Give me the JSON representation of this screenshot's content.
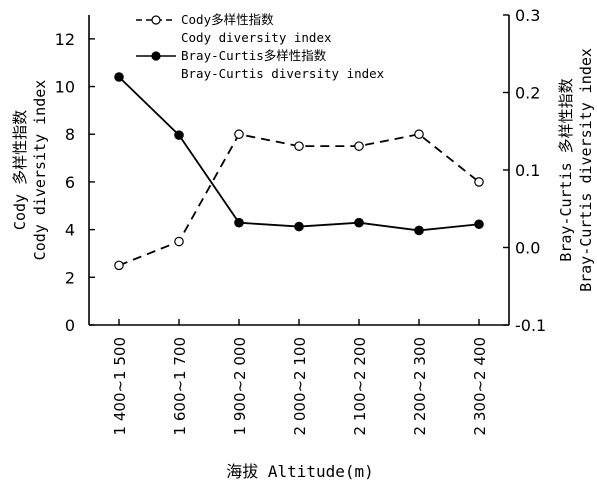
{
  "chart_data": {
    "type": "line",
    "categories": [
      "1 400~1 500",
      "1 600~1 700",
      "1 900~2 000",
      "2 000~2 100",
      "2 100~2 200",
      "2 200~2 300",
      "2 300~2 400"
    ],
    "xlabel": "海拔 Altitude(m)",
    "ylabel_left": [
      "Cody 多样性指数",
      "Cody diversity index"
    ],
    "ylabel_right": [
      "Bray-Curtis 多样性指数",
      "Bray-Curtis diversity index"
    ],
    "ylim_left": [
      0,
      13
    ],
    "yticks_left": [
      "0",
      "2",
      "4",
      "6",
      "8",
      "10",
      "12"
    ],
    "ylim_right": [
      -0.1,
      0.3
    ],
    "yticks_right": [
      "-0.1",
      "0.0",
      "0.1",
      "0.2",
      "0.3"
    ],
    "grid": false,
    "legend_position": "top-center",
    "series": [
      {
        "name": "Cody多样性指数",
        "name_en": "Cody diversity index",
        "axis": "left",
        "line_style": "dashed",
        "marker": "open-circle",
        "values": [
          2.5,
          3.5,
          8.0,
          7.5,
          7.5,
          8.0,
          6.0
        ]
      },
      {
        "name": "Bray-Curtis多样性指数",
        "name_en": "Bray-Curtis  diversity index",
        "axis": "right",
        "line_style": "solid",
        "marker": "filled-circle",
        "values": [
          0.22,
          0.145,
          0.032,
          0.027,
          0.032,
          0.022,
          0.03
        ]
      }
    ]
  }
}
